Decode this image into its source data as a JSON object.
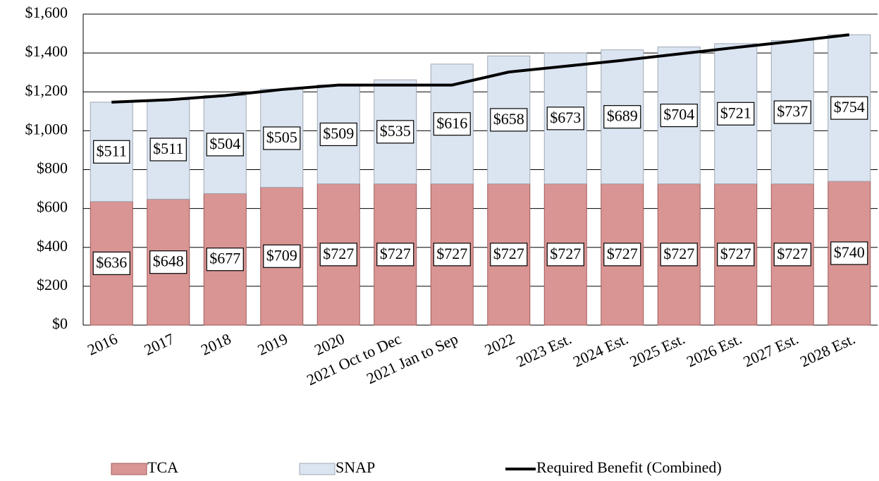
{
  "chart_data": {
    "type": "stacked-bar-line",
    "categories": [
      "2016",
      "2017",
      "2018",
      "2019",
      "2020",
      "2021 Oct to Dec",
      "2021 Jan to Sep",
      "2022",
      "2023 Est.",
      "2024 Est.",
      "2025 Est.",
      "2026 Est.",
      "2027 Est.",
      "2028 Est."
    ],
    "series": [
      {
        "name": "TCA",
        "color": "#d99594",
        "kind": "bar",
        "values": [
          636,
          648,
          677,
          709,
          727,
          727,
          727,
          727,
          727,
          727,
          727,
          727,
          727,
          740
        ],
        "value_labels": [
          "$636",
          "$648",
          "$677",
          "$709",
          "$727",
          "$727",
          "$727",
          "$727",
          "$727",
          "$727",
          "$727",
          "$727",
          "$727",
          "$740"
        ]
      },
      {
        "name": "SNAP",
        "color": "#dbe5f1",
        "kind": "bar",
        "values": [
          511,
          511,
          504,
          505,
          509,
          535,
          616,
          658,
          673,
          689,
          704,
          721,
          737,
          754
        ],
        "value_labels": [
          "$511",
          "$511",
          "$504",
          "$505",
          "$509",
          "$535",
          "$616",
          "$658",
          "$673",
          "$689",
          "$704",
          "$721",
          "$737",
          "$754"
        ]
      },
      {
        "name": "Required Benefit (Combined)",
        "color": "#000000",
        "kind": "line",
        "values": [
          1147,
          1159,
          1181,
          1212,
          1235,
          1235,
          1235,
          1302,
          1332,
          1362,
          1395,
          1428,
          1460,
          1494
        ]
      }
    ],
    "ylim": [
      0,
      1600
    ],
    "yticks": [
      {
        "value": 0,
        "label": "$0"
      },
      {
        "value": 200,
        "label": "$200"
      },
      {
        "value": 400,
        "label": "$400"
      },
      {
        "value": 600,
        "label": "$600"
      },
      {
        "value": 800,
        "label": "$800"
      },
      {
        "value": 1000,
        "label": "$1,000"
      },
      {
        "value": 1200,
        "label": "$1,200"
      },
      {
        "value": 1400,
        "label": "$1,400"
      },
      {
        "value": 1600,
        "label": "$1,600"
      }
    ],
    "grid": true,
    "legend": "bottom"
  }
}
